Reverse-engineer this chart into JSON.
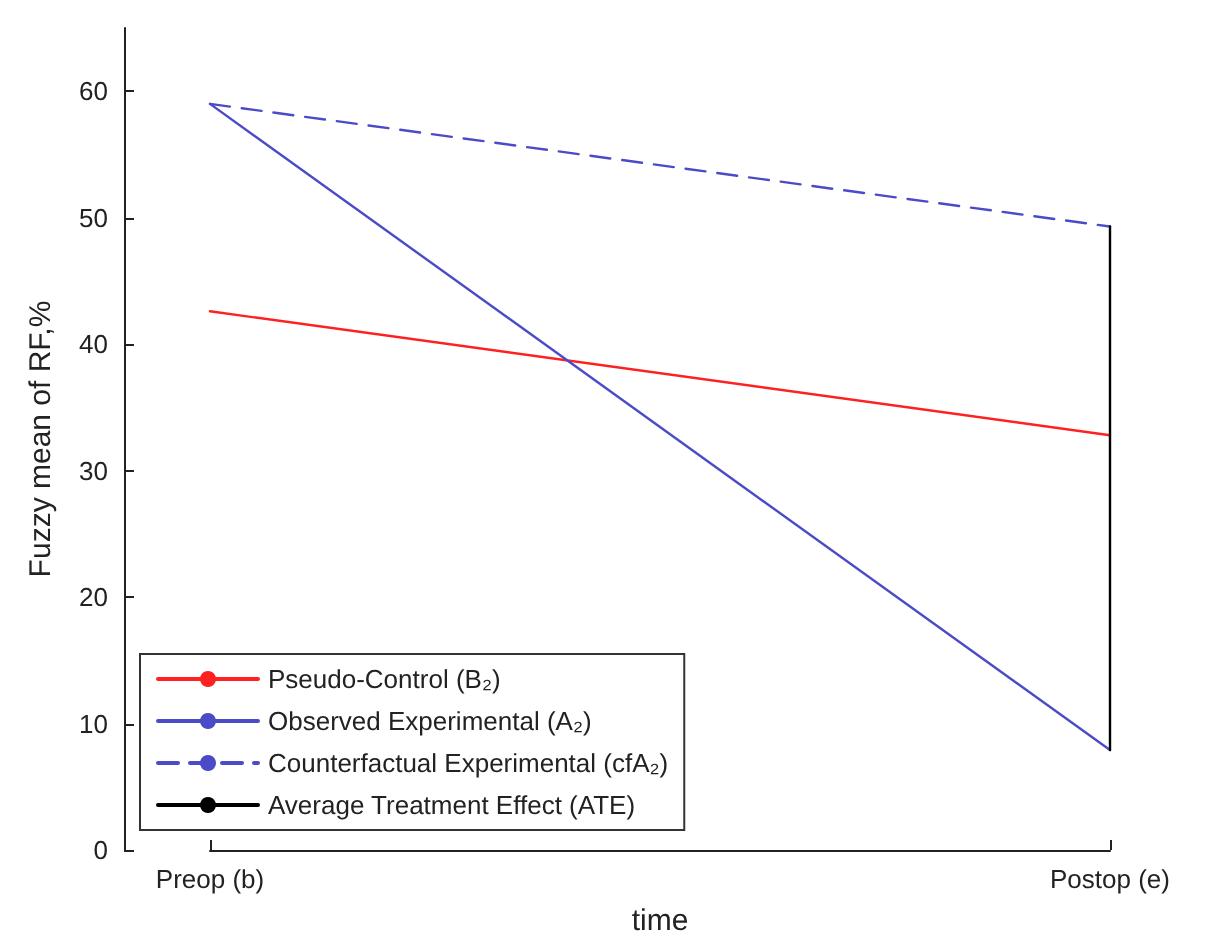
{
  "chart_data": {
    "type": "line",
    "xlabel": "time",
    "ylabel": "Fuzzy mean of RF,%",
    "categories": [
      "Preop (b)",
      "Postop (e)"
    ],
    "series": [
      {
        "name": "Pseudo-Control (B₂)",
        "color": "#ff2020",
        "values": [
          42.6,
          32.8
        ],
        "line_style": "solid"
      },
      {
        "name": "Observed Experimental (A₂)",
        "color": "#4b4bc8",
        "values": [
          59.0,
          7.9
        ],
        "line_style": "solid"
      },
      {
        "name": "Counterfactual Experimental (cfA₂)",
        "color": "#4b4bc8",
        "values": [
          59.0,
          49.3
        ],
        "line_style": "dashed"
      },
      {
        "name": "Average Treatment Effect (ATE)",
        "color": "#000000",
        "x": [
          "Postop (e)",
          "Postop (e)"
        ],
        "values": [
          7.9,
          49.3
        ],
        "line_style": "solid"
      }
    ],
    "ylim": [
      0,
      65
    ],
    "yticks": [
      0,
      10,
      20,
      30,
      40,
      50,
      60
    ],
    "grid": false,
    "legend": "bottom left",
    "marker": "none"
  }
}
